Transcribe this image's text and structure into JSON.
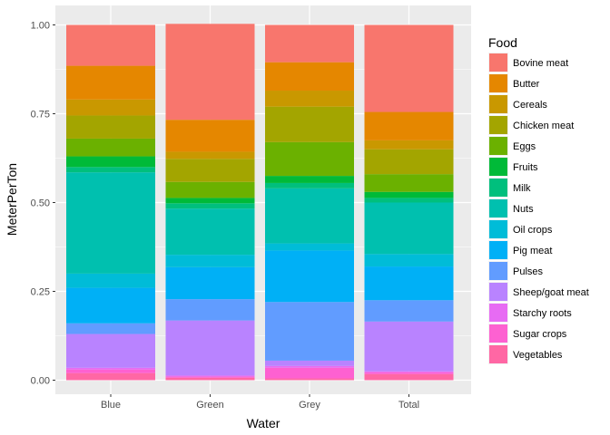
{
  "chart_data": {
    "type": "bar",
    "stacked": true,
    "xlabel": "Water",
    "ylabel": "MeterPerTon",
    "ylim": [
      0,
      1
    ],
    "yticks": [
      "0.00",
      "0.25",
      "0.50",
      "0.75",
      "1.00"
    ],
    "ytick_values": [
      0,
      0.25,
      0.5,
      0.75,
      1
    ],
    "categories": [
      "Blue",
      "Green",
      "Grey",
      "Total"
    ],
    "legend_title": "Food",
    "legend_position": "right",
    "grid": true,
    "panel_background": "#ebebeb",
    "series": [
      {
        "name": "Bovine meat",
        "color": "#F8766D",
        "values": [
          0.115,
          0.27,
          0.105,
          0.245
        ]
      },
      {
        "name": "Butter",
        "color": "#E58700",
        "values": [
          0.095,
          0.09,
          0.08,
          0.08
        ]
      },
      {
        "name": "Cereals",
        "color": "#C99800",
        "values": [
          0.045,
          0.02,
          0.045,
          0.025
        ]
      },
      {
        "name": "Chicken meat",
        "color": "#A3A500",
        "values": [
          0.065,
          0.065,
          0.1,
          0.07
        ]
      },
      {
        "name": "Eggs",
        "color": "#6BB100",
        "values": [
          0.05,
          0.045,
          0.095,
          0.05
        ]
      },
      {
        "name": "Fruits",
        "color": "#00BA38",
        "values": [
          0.03,
          0.015,
          0.02,
          0.017
        ]
      },
      {
        "name": "Milk",
        "color": "#00BF7D",
        "values": [
          0.015,
          0.015,
          0.015,
          0.013
        ]
      },
      {
        "name": "Nuts",
        "color": "#00C0AF",
        "values": [
          0.285,
          0.13,
          0.155,
          0.145
        ]
      },
      {
        "name": "Oil crops",
        "color": "#00BCD8",
        "values": [
          0.04,
          0.035,
          0.02,
          0.035
        ]
      },
      {
        "name": "Pig meat",
        "color": "#00B0F6",
        "values": [
          0.1,
          0.09,
          0.145,
          0.095
        ]
      },
      {
        "name": "Pulses",
        "color": "#619CFF",
        "values": [
          0.03,
          0.06,
          0.165,
          0.06
        ]
      },
      {
        "name": "Sheep/goat meat",
        "color": "#B983FF",
        "values": [
          0.095,
          0.155,
          0.015,
          0.14
        ]
      },
      {
        "name": "Starchy roots",
        "color": "#E76BF3",
        "values": [
          0.005,
          0.003,
          0.005,
          0.003
        ]
      },
      {
        "name": "Sugar crops",
        "color": "#FD61D1",
        "values": [
          0.01,
          0.003,
          0.03,
          0.005
        ]
      },
      {
        "name": "Vegetables",
        "color": "#FF67A4",
        "values": [
          0.02,
          0.007,
          0.005,
          0.017
        ]
      }
    ]
  }
}
